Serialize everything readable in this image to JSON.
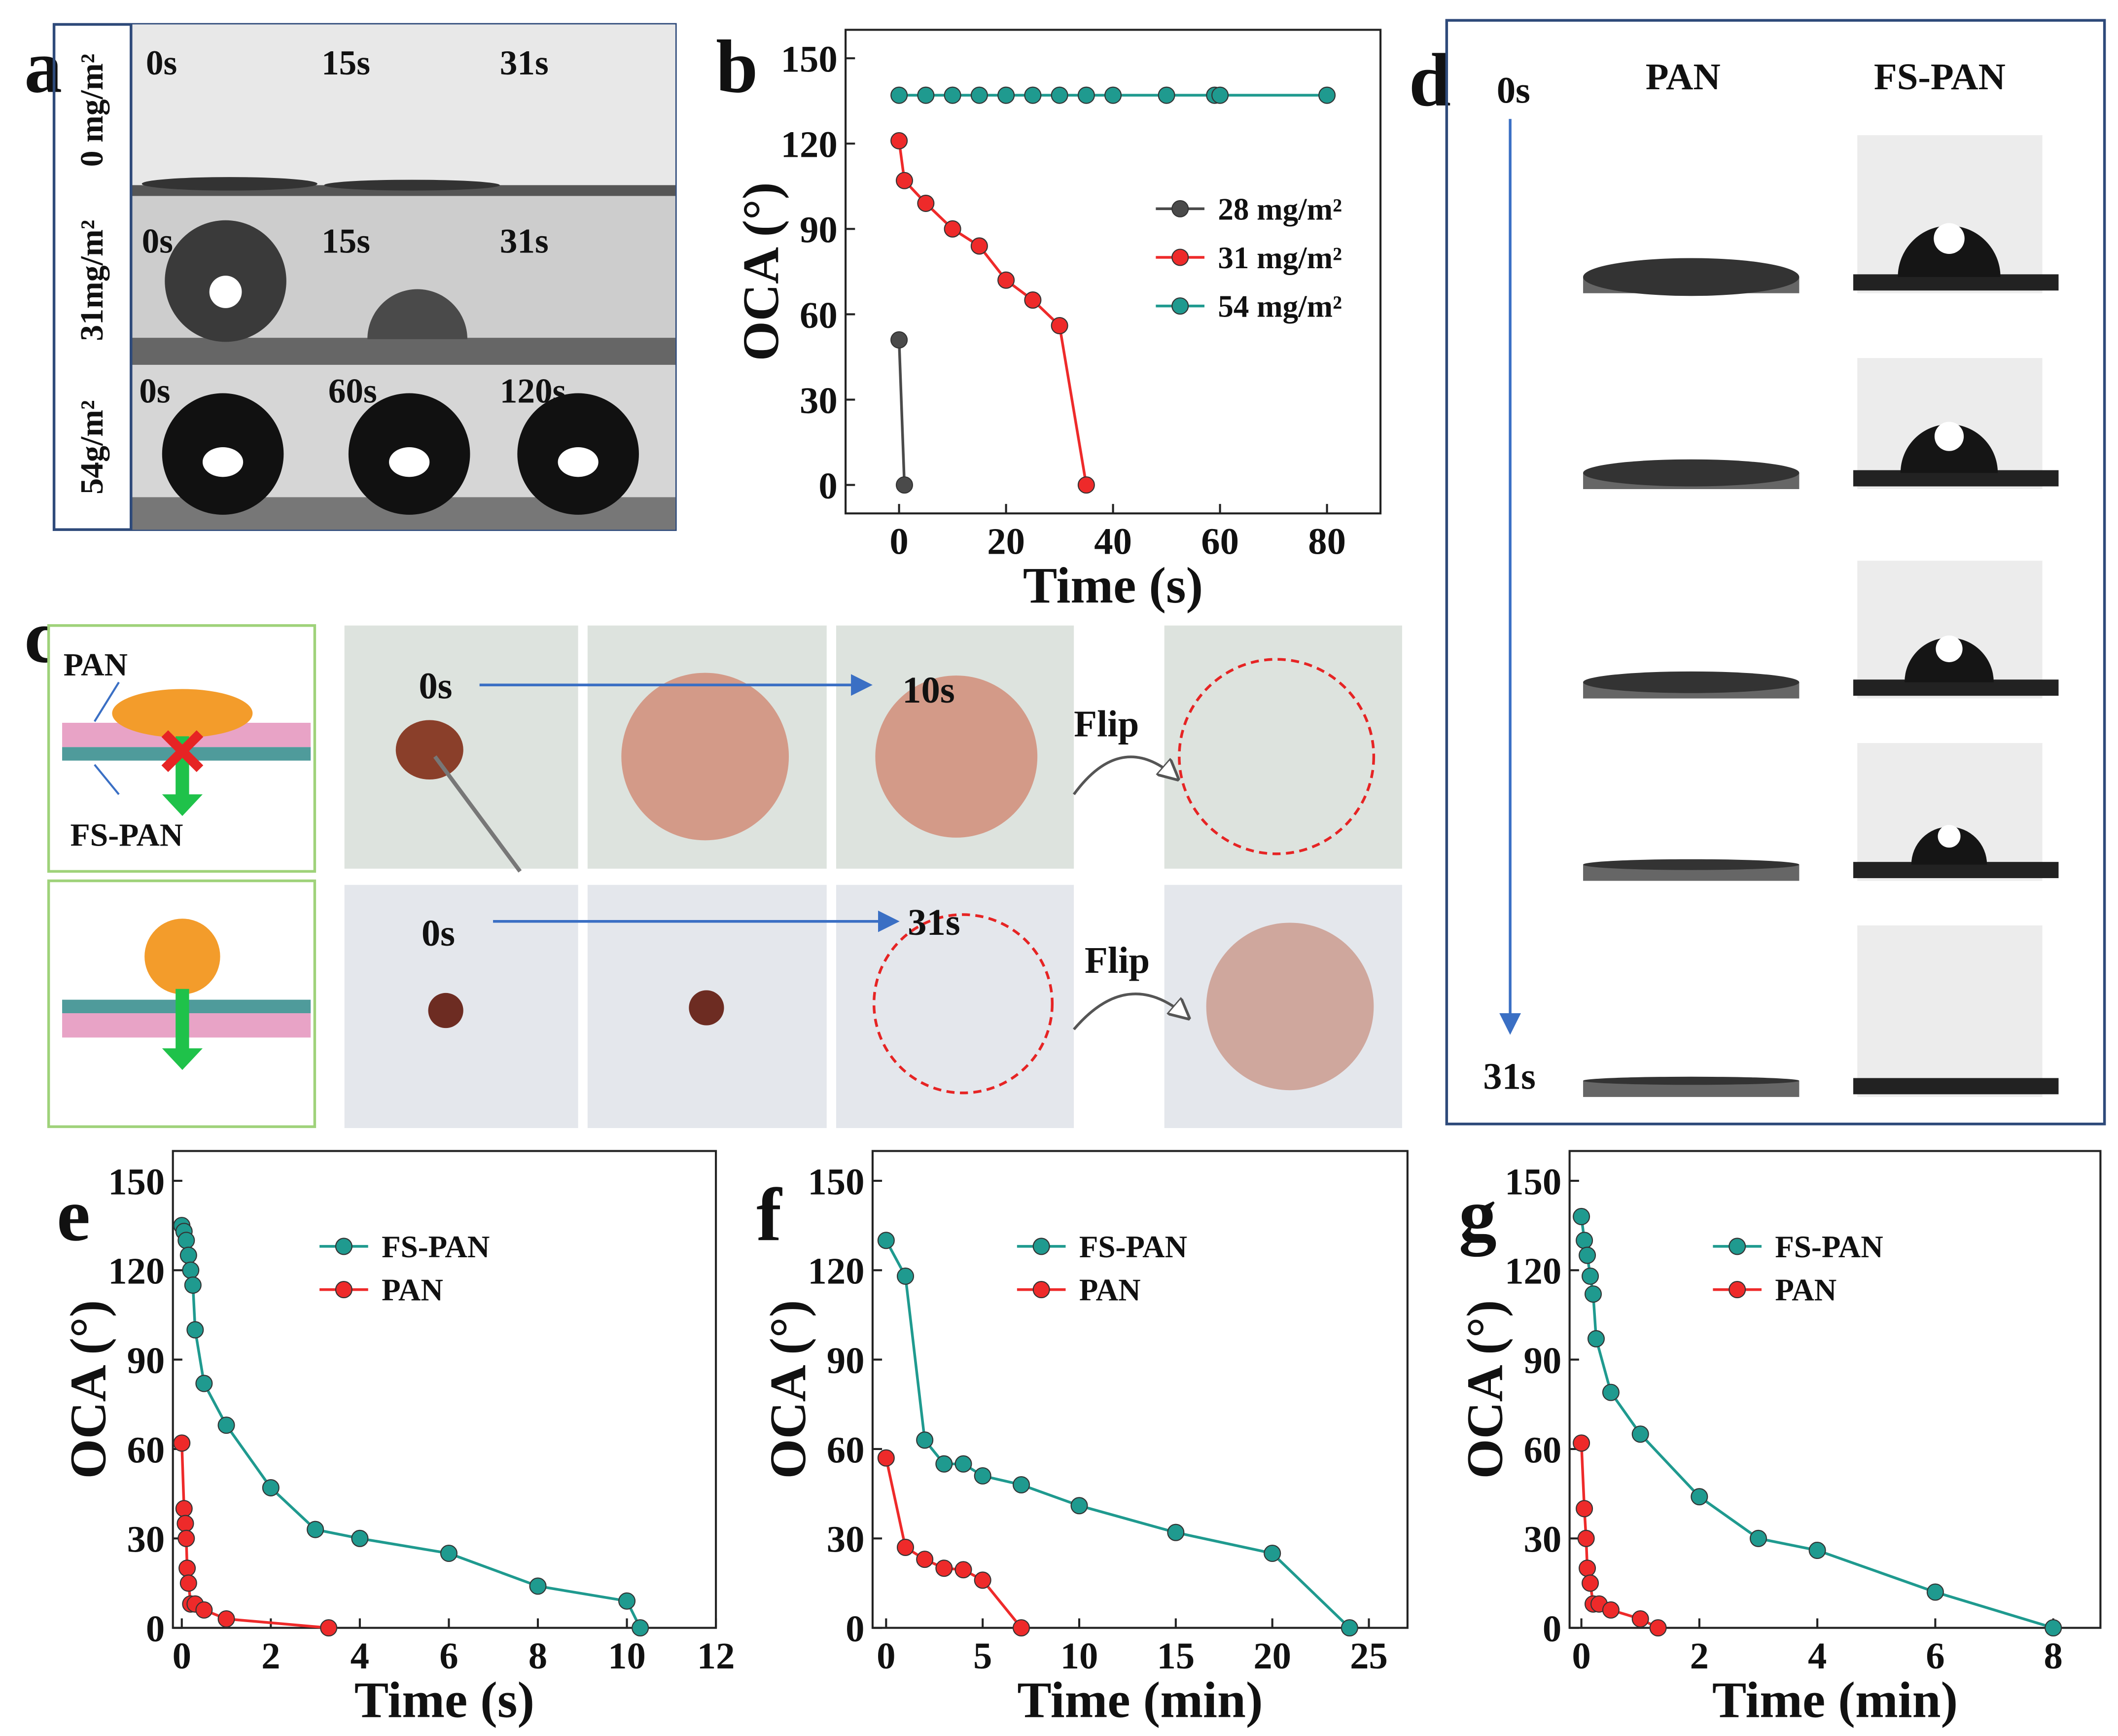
{
  "panel_labels": [
    "a",
    "b",
    "c",
    "d",
    "e",
    "f",
    "g"
  ],
  "panel_a": {
    "rows": [
      {
        "label": "0 mg/m²",
        "times": [
          "0s",
          "15s",
          "31s"
        ]
      },
      {
        "label": "31mg/m²",
        "times": [
          "0s",
          "15s",
          "31s"
        ]
      },
      {
        "label": "54g/m²",
        "times": [
          "0s",
          "60s",
          "120s"
        ]
      }
    ]
  },
  "panel_c": {
    "layer_labels": [
      "PAN",
      "FS-PAN"
    ],
    "rows": [
      {
        "start": "0s",
        "end": "10s",
        "action": "Flip"
      },
      {
        "start": "0s",
        "end": "31s",
        "action": "Flip"
      }
    ]
  },
  "panel_d": {
    "start": "0s",
    "end": "31s",
    "columns": [
      "PAN",
      "FS-PAN"
    ]
  },
  "chart_data": [
    {
      "type": "line",
      "x_label": "Time (s)",
      "y_label": "OCA (°)",
      "xlim": [
        -10,
        90
      ],
      "ylim": [
        -10,
        160
      ],
      "xticks": [
        0,
        20,
        40,
        60,
        80
      ],
      "yticks": [
        0,
        30,
        60,
        90,
        120,
        150
      ],
      "legend": "center right",
      "series": [
        {
          "name": "28 mg/m²",
          "color": "#4a4a4a",
          "x": [
            0,
            1
          ],
          "values": [
            51,
            0
          ]
        },
        {
          "name": "31 mg/m²",
          "color": "#ee2a2a",
          "x": [
            0,
            1,
            5,
            10,
            15,
            20,
            25,
            30,
            35
          ],
          "values": [
            121,
            107,
            99,
            90,
            84,
            72,
            65,
            56,
            0
          ]
        },
        {
          "name": "54 mg/m²",
          "color": "#1f9a8f",
          "x": [
            0,
            5,
            10,
            15,
            20,
            25,
            30,
            35,
            40,
            50,
            59,
            60,
            80
          ],
          "values": [
            137,
            137,
            137,
            137,
            137,
            137,
            137,
            137,
            137,
            137,
            137,
            137,
            137
          ]
        }
      ]
    },
    {
      "type": "line",
      "x_label": "Time (s)",
      "y_label": "OCA (°)",
      "xlim": [
        -0.2,
        12
      ],
      "ylim": [
        0,
        160
      ],
      "xticks": [
        0,
        2,
        4,
        6,
        8,
        10,
        12
      ],
      "yticks": [
        0,
        30,
        60,
        90,
        120,
        150
      ],
      "legend": "upper center",
      "series": [
        {
          "name": "FS-PAN",
          "color": "#1f9a8f",
          "x": [
            0,
            0.05,
            0.1,
            0.15,
            0.2,
            0.25,
            0.3,
            0.5,
            1,
            2,
            3,
            4,
            6,
            8,
            10,
            10.3
          ],
          "values": [
            135,
            133,
            130,
            125,
            120,
            115,
            100,
            82,
            68,
            47,
            33,
            30,
            25,
            14,
            9,
            0
          ]
        },
        {
          "name": "PAN",
          "color": "#ee2a2a",
          "x": [
            0,
            0.05,
            0.08,
            0.1,
            0.12,
            0.15,
            0.2,
            0.3,
            0.5,
            1,
            3.3
          ],
          "values": [
            62,
            40,
            35,
            30,
            20,
            15,
            8,
            8,
            6,
            3,
            0
          ]
        }
      ]
    },
    {
      "type": "line",
      "x_label": "Time (min)",
      "y_label": "OCA (°)",
      "xlim": [
        -0.7,
        27
      ],
      "ylim": [
        0,
        160
      ],
      "xticks": [
        0,
        5,
        10,
        15,
        20,
        25
      ],
      "yticks": [
        0,
        30,
        60,
        90,
        120,
        150
      ],
      "legend": "upper center",
      "series": [
        {
          "name": "FS-PAN",
          "color": "#1f9a8f",
          "x": [
            0,
            1,
            2,
            3,
            4,
            5,
            7,
            10,
            15,
            20,
            24
          ],
          "values": [
            130,
            118,
            63,
            55,
            55,
            51,
            48,
            41,
            32,
            25,
            0
          ]
        },
        {
          "name": "PAN",
          "color": "#ee2a2a",
          "x": [
            0,
            1,
            2,
            3,
            4,
            5,
            7
          ],
          "values": [
            57,
            27,
            23,
            20,
            19.5,
            16,
            0
          ]
        }
      ]
    },
    {
      "type": "line",
      "x_label": "Time (min)",
      "y_label": "OCA (°)",
      "xlim": [
        -0.2,
        8.8
      ],
      "ylim": [
        0,
        160
      ],
      "xticks": [
        0,
        2,
        4,
        6,
        8
      ],
      "yticks": [
        0,
        30,
        60,
        90,
        120,
        150
      ],
      "legend": "upper center",
      "series": [
        {
          "name": "FS-PAN",
          "color": "#1f9a8f",
          "x": [
            0,
            0.05,
            0.1,
            0.15,
            0.2,
            0.25,
            0.5,
            1,
            2,
            3,
            4,
            6,
            8
          ],
          "values": [
            138,
            130,
            125,
            118,
            112,
            97,
            79,
            65,
            44,
            30,
            26,
            12,
            0
          ]
        },
        {
          "name": "PAN",
          "color": "#ee2a2a",
          "x": [
            0,
            0.05,
            0.08,
            0.1,
            0.15,
            0.2,
            0.3,
            0.5,
            1,
            1.3
          ],
          "values": [
            62,
            40,
            30,
            20,
            15,
            8,
            8,
            6,
            3,
            0
          ]
        }
      ]
    }
  ]
}
